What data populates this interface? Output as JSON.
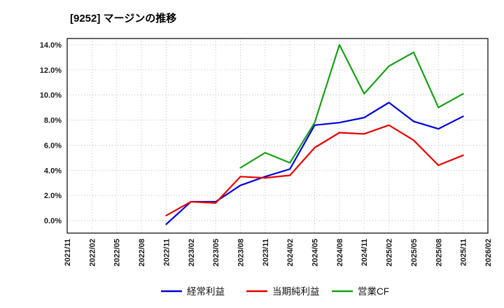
{
  "chart_data": {
    "type": "line",
    "title": "[9252]  マージンの推移",
    "categories": [
      "2021/11",
      "2022/02",
      "2022/05",
      "2022/08",
      "2022/11",
      "2023/02",
      "2023/05",
      "2023/08",
      "2023/11",
      "2024/02",
      "2024/05",
      "2024/08",
      "2024/11",
      "2025/02",
      "2025/05",
      "2025/08",
      "2025/11",
      "2026/02"
    ],
    "series": [
      {
        "name": "経常利益",
        "color": "#0000e0",
        "values": [
          null,
          null,
          null,
          null,
          -0.3,
          1.5,
          1.5,
          2.8,
          3.5,
          4.1,
          7.6,
          7.8,
          8.2,
          9.4,
          7.9,
          7.3,
          8.3,
          null
        ]
      },
      {
        "name": "当期純利益",
        "color": "#e60000",
        "values": [
          null,
          null,
          null,
          null,
          0.4,
          1.5,
          1.4,
          3.5,
          3.4,
          3.6,
          5.8,
          7.0,
          6.9,
          7.6,
          6.4,
          4.4,
          5.2,
          null
        ]
      },
      {
        "name": "営業CF",
        "color": "#15a015",
        "values": [
          null,
          null,
          null,
          null,
          null,
          null,
          null,
          4.2,
          5.4,
          4.6,
          7.8,
          14.0,
          10.1,
          12.3,
          13.4,
          9.0,
          10.1,
          null
        ]
      }
    ],
    "ylim": [
      -1.0,
      14.5
    ],
    "yticks": [
      {
        "value": 0,
        "label": "0.0%"
      },
      {
        "value": 2,
        "label": "2.0%"
      },
      {
        "value": 4,
        "label": "4.0%"
      },
      {
        "value": 6,
        "label": "6.0%"
      },
      {
        "value": 8,
        "label": "8.0%"
      },
      {
        "value": 10,
        "label": "10.0%"
      },
      {
        "value": 12,
        "label": "12.0%"
      },
      {
        "value": 14,
        "label": "14.0%"
      }
    ],
    "legend_position": "bottom",
    "grid": "dotted",
    "frame_color": "#000000",
    "grid_color": "#b0b0b0",
    "background_color": "#ffffff"
  }
}
